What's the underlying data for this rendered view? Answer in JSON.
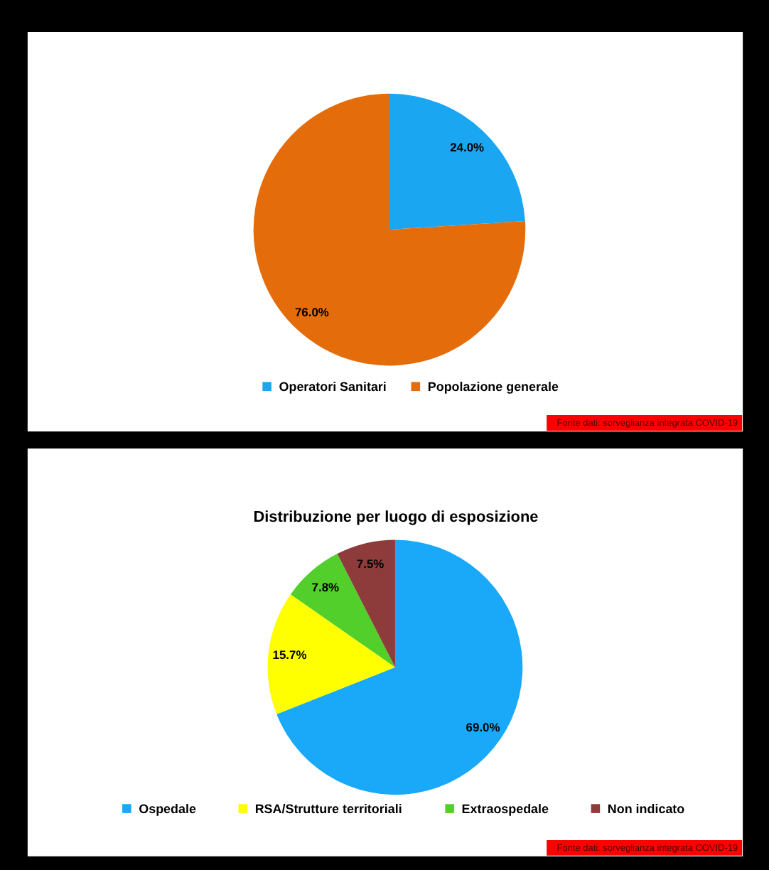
{
  "chart_data": [
    {
      "type": "pie",
      "categories": [
        "Operatori Sanitari",
        "Popolazione generale"
      ],
      "values": [
        24.0,
        76.0
      ],
      "colors": [
        "#1ba6f2",
        "#e46c0a"
      ],
      "value_labels": [
        "24.0%",
        "76.0%"
      ],
      "legend": "bottom",
      "annotations": [
        "Fonte dati: sorveglianza integrata COVID-19"
      ]
    },
    {
      "type": "pie",
      "title": "Distribuzione per luogo di esposizione",
      "categories": [
        "Ospedale",
        "RSA/Strutture territoriali",
        "Extraospedale",
        "Non indicato"
      ],
      "values": [
        69.0,
        15.7,
        7.8,
        7.5
      ],
      "colors": [
        "#1aa9f8",
        "#ffff00",
        "#52cf2a",
        "#8e3b3b"
      ],
      "value_labels": [
        "69.0%",
        "15.7%",
        "7.8%",
        "7.5%"
      ],
      "legend": "bottom",
      "annotations": [
        "Fonte dati: sorveglianza integrata COVID-19"
      ]
    }
  ]
}
